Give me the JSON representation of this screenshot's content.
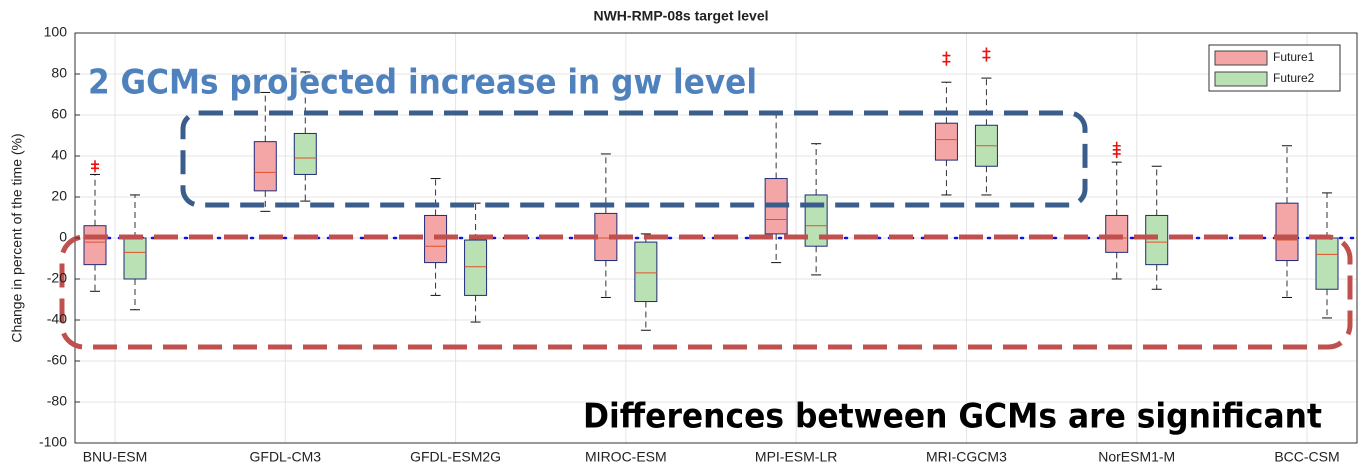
{
  "chart_data": {
    "type": "box",
    "title": "NWH-RMP-08s target level",
    "y_label": "Change in percent of the time (%)",
    "categories": [
      "BNU-ESM",
      "GFDL-CM3",
      "GFDL-ESM2G",
      "MIROC-ESM",
      "MPI-ESM-LR",
      "MRI-CGCM3",
      "NorESM1-M",
      "BCC-CSM"
    ],
    "ylim": [
      -100,
      100
    ],
    "yticks": [
      -100,
      -80,
      -60,
      -40,
      -20,
      0,
      20,
      40,
      60,
      80,
      100
    ],
    "grid": true,
    "reference_line": 0,
    "legend": "upper right",
    "series": [
      {
        "name": "Future1",
        "color": "#f4a6a6",
        "boxes": [
          {
            "min": -26,
            "q1": -13,
            "median": -2,
            "q3": 6,
            "max": 31,
            "outliers": [
              34,
              36
            ]
          },
          {
            "min": 13,
            "q1": 23,
            "median": 32,
            "q3": 47,
            "max": 71,
            "outliers": []
          },
          {
            "min": -28,
            "q1": -12,
            "median": -4,
            "q3": 11,
            "max": 29,
            "outliers": []
          },
          {
            "min": -29,
            "q1": -11,
            "median": 0,
            "q3": 12,
            "max": 41,
            "outliers": []
          },
          {
            "min": -12,
            "q1": 2,
            "median": 9,
            "q3": 29,
            "max": 61,
            "outliers": []
          },
          {
            "min": 21,
            "q1": 38,
            "median": 48,
            "q3": 56,
            "max": 76,
            "outliers": [
              86,
              89
            ]
          },
          {
            "min": -20,
            "q1": -7,
            "median": 0,
            "q3": 11,
            "max": 37,
            "outliers": [
              41,
              43,
              45
            ]
          },
          {
            "min": -29,
            "q1": -11,
            "median": -1,
            "q3": 17,
            "max": 45,
            "outliers": []
          }
        ]
      },
      {
        "name": "Future2",
        "color": "#b9e1b4",
        "boxes": [
          {
            "min": -35,
            "q1": -20,
            "median": -7,
            "q3": 0,
            "max": 21,
            "outliers": []
          },
          {
            "min": 18,
            "q1": 31,
            "median": 39,
            "q3": 51,
            "max": 81,
            "outliers": []
          },
          {
            "min": -41,
            "q1": -28,
            "median": -14,
            "q3": -1,
            "max": 17,
            "outliers": []
          },
          {
            "min": -45,
            "q1": -31,
            "median": -17,
            "q3": -2,
            "max": 2,
            "outliers": []
          },
          {
            "min": -18,
            "q1": -4,
            "median": 6,
            "q3": 21,
            "max": 46,
            "outliers": []
          },
          {
            "min": 21,
            "q1": 35,
            "median": 45,
            "q3": 55,
            "max": 78,
            "outliers": [
              88,
              91
            ]
          },
          {
            "min": -25,
            "q1": -13,
            "median": -2,
            "q3": 11,
            "max": 35,
            "outliers": []
          },
          {
            "min": -39,
            "q1": -25,
            "median": -8,
            "q3": 0,
            "max": 22,
            "outliers": []
          }
        ]
      }
    ],
    "annotations": [
      "2 GCMs projected increase in gw level",
      "Differences between GCMs are significant"
    ]
  }
}
